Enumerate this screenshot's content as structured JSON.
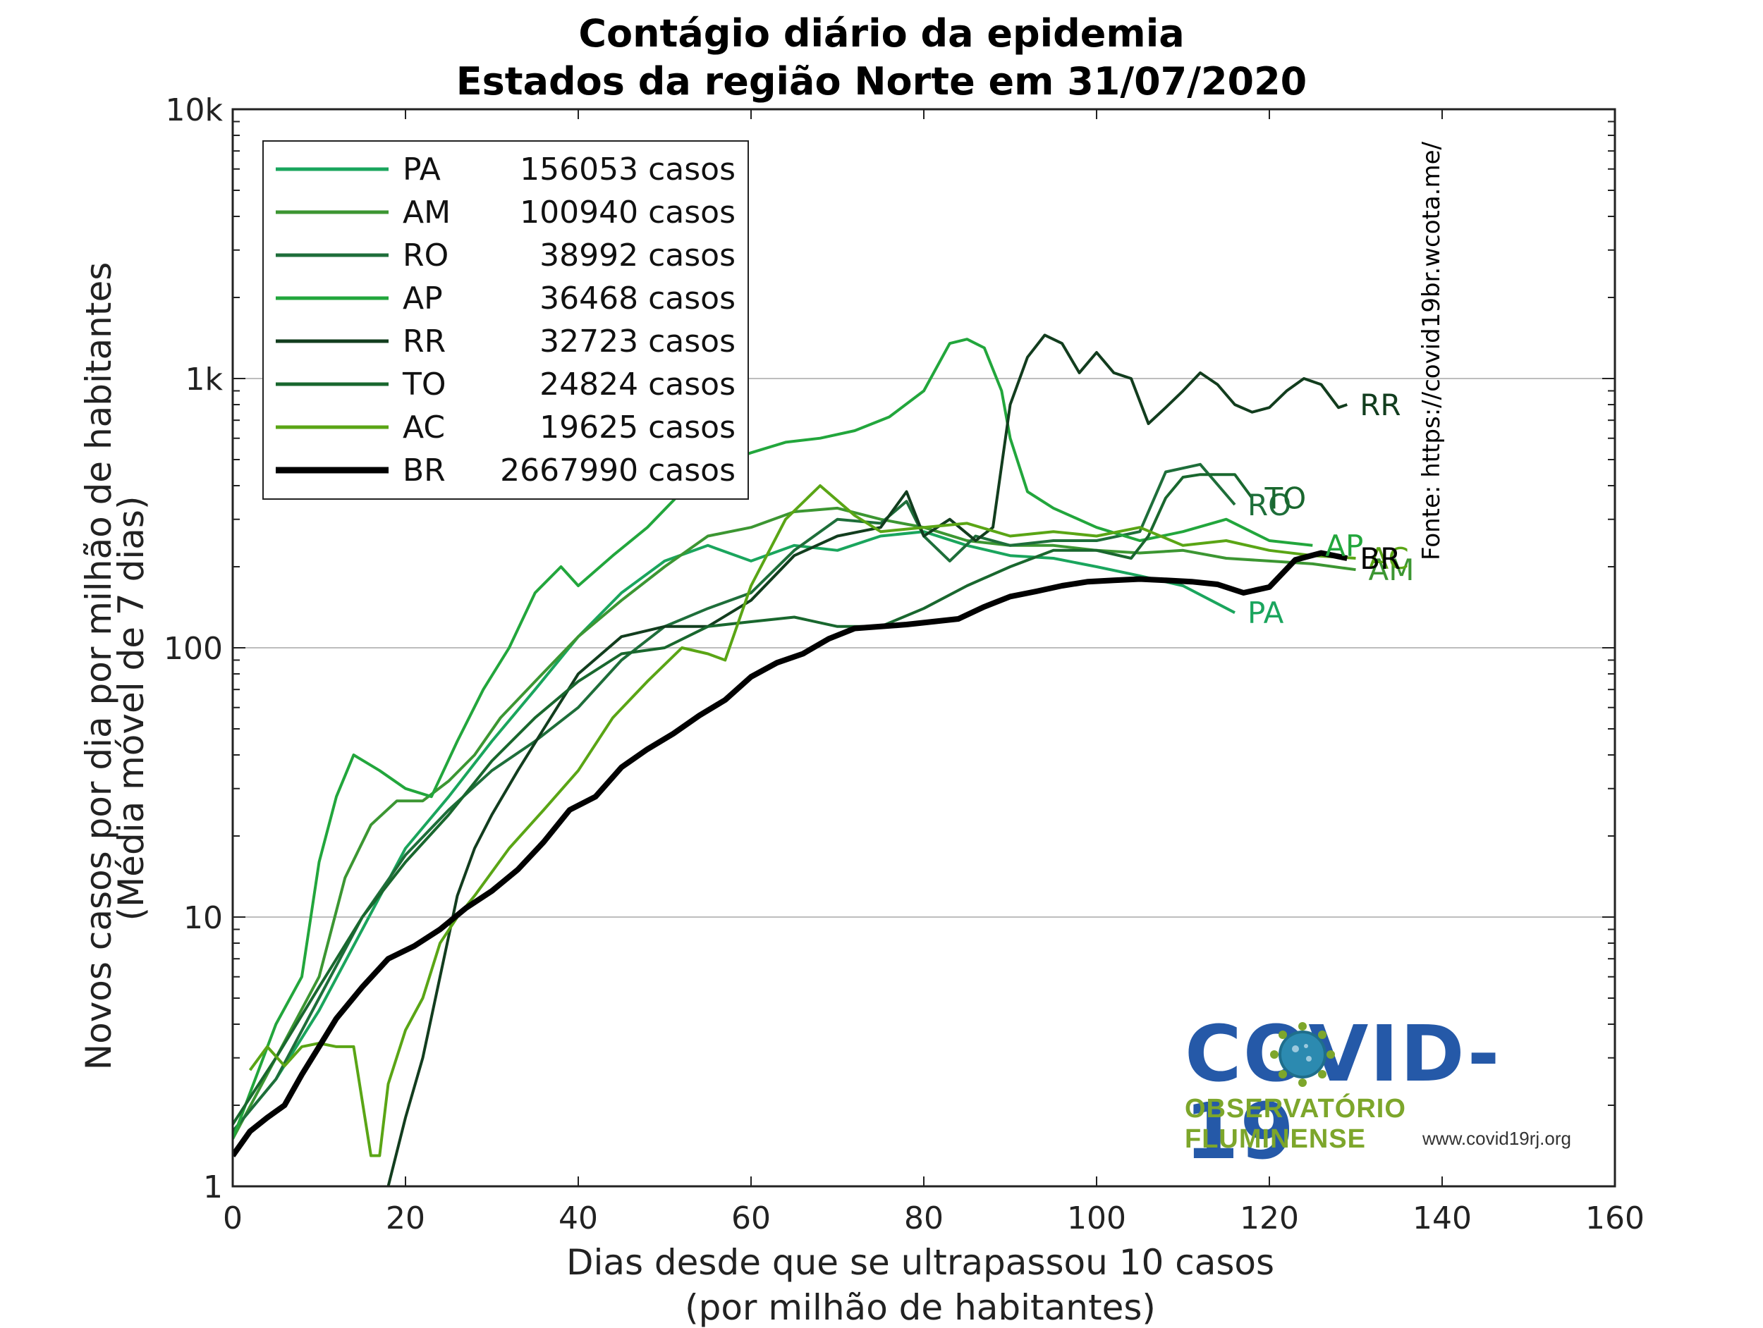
{
  "title_line1": "Contágio diário da epidemia",
  "title_line2": "Estados da região Norte em 31/07/2020",
  "source": "Fonte: https://covid19br.wcota.me/",
  "logo": {
    "title": "COVID-19",
    "subtitle": "OBSERVATÓRIO FLUMINENSE",
    "url": "www.covid19rj.org",
    "title_color": "#2559a8",
    "subtitle_color": "#7da62b",
    "virus_icon": "coronavirus-icon"
  },
  "chart_data": {
    "type": "line",
    "xlabel_line1": "Dias desde que se ultrapassou 10 casos",
    "xlabel_line2": "(por milhão de habitantes)",
    "ylabel_line1": "Novos casos por dia por milhão de habitantes",
    "ylabel_line2": "(Média móvel de 7 dias)",
    "xlim": [
      0,
      160
    ],
    "ylim": [
      1,
      10000
    ],
    "yscale": "log",
    "grid": "y-major",
    "legend_position": "top-left",
    "x_ticks": [
      0,
      20,
      40,
      60,
      80,
      100,
      120,
      140,
      160
    ],
    "x_tick_labels": [
      "0",
      "20",
      "40",
      "60",
      "80",
      "100",
      "120",
      "140",
      "160"
    ],
    "y_ticks": [
      1,
      10,
      100,
      1000,
      10000
    ],
    "y_tick_labels": [
      "1",
      "10",
      "100",
      "1k",
      "10k"
    ],
    "series": [
      {
        "name": "PA",
        "count": "156053 casos",
        "color": "#1aa55d",
        "width": 4,
        "end_label": "PA",
        "x": [
          0,
          5,
          10,
          15,
          20,
          25,
          30,
          35,
          40,
          45,
          50,
          55,
          60,
          65,
          70,
          75,
          80,
          85,
          90,
          95,
          100,
          105,
          110,
          116
        ],
        "y": [
          1.6,
          2.5,
          4.5,
          9,
          18,
          28,
          45,
          70,
          110,
          160,
          210,
          240,
          210,
          240,
          230,
          260,
          270,
          240,
          220,
          215,
          200,
          185,
          170,
          135
        ]
      },
      {
        "name": "AM",
        "count": "100940 casos",
        "color": "#3c9632",
        "width": 4,
        "end_label": "AM",
        "x": [
          0,
          5,
          10,
          13,
          16,
          19,
          22,
          25,
          28,
          31,
          35,
          40,
          45,
          50,
          55,
          60,
          65,
          70,
          75,
          80,
          85,
          90,
          95,
          100,
          105,
          110,
          115,
          120,
          125,
          130
        ],
        "y": [
          1.5,
          3,
          6,
          14,
          22,
          27,
          27,
          32,
          40,
          55,
          75,
          110,
          150,
          200,
          260,
          280,
          320,
          330,
          300,
          280,
          250,
          240,
          240,
          230,
          225,
          230,
          215,
          210,
          205,
          195
        ]
      },
      {
        "name": "RO",
        "count": "38992 casos",
        "color": "#1e6e3a",
        "width": 4,
        "end_label": "RO",
        "x": [
          0,
          5,
          10,
          15,
          20,
          25,
          30,
          35,
          40,
          45,
          50,
          55,
          60,
          65,
          70,
          75,
          78,
          80,
          83,
          86,
          90,
          95,
          100,
          105,
          108,
          112,
          116
        ],
        "y": [
          1.6,
          2.5,
          5,
          10,
          17,
          25,
          35,
          45,
          60,
          90,
          120,
          140,
          160,
          230,
          300,
          290,
          350,
          260,
          210,
          260,
          240,
          250,
          250,
          270,
          450,
          480,
          340
        ]
      },
      {
        "name": "AP",
        "count": "36468 casos",
        "color": "#22a63c",
        "width": 4,
        "end_label": "AP",
        "x": [
          0,
          5,
          8,
          10,
          12,
          14,
          17,
          20,
          23,
          26,
          29,
          32,
          35,
          38,
          40,
          44,
          48,
          52,
          56,
          60,
          64,
          68,
          72,
          76,
          80,
          83,
          85,
          87,
          89,
          90,
          92,
          95,
          100,
          105,
          110,
          115,
          120,
          125
        ],
        "y": [
          1.5,
          4,
          6,
          16,
          28,
          40,
          35,
          30,
          28,
          45,
          70,
          100,
          160,
          200,
          170,
          220,
          280,
          380,
          480,
          530,
          580,
          600,
          640,
          720,
          900,
          1350,
          1400,
          1300,
          900,
          600,
          380,
          330,
          280,
          250,
          270,
          300,
          250,
          240
        ]
      },
      {
        "name": "RR",
        "count": "32723 casos",
        "color": "#123d1e",
        "width": 4,
        "end_label": "RR",
        "x": [
          18,
          20,
          22,
          24,
          26,
          28,
          30,
          33,
          36,
          40,
          45,
          50,
          55,
          60,
          65,
          70,
          75,
          78,
          80,
          83,
          86,
          88,
          90,
          92,
          94,
          96,
          98,
          100,
          102,
          104,
          106,
          108,
          110,
          112,
          114,
          116,
          118,
          120,
          122,
          124,
          126,
          128,
          129
        ],
        "y": [
          1,
          1.8,
          3,
          6,
          12,
          18,
          24,
          35,
          50,
          80,
          110,
          120,
          120,
          150,
          220,
          260,
          280,
          380,
          260,
          300,
          250,
          280,
          800,
          1200,
          1450,
          1350,
          1050,
          1250,
          1050,
          1000,
          680,
          780,
          900,
          1050,
          950,
          800,
          750,
          780,
          900,
          1000,
          950,
          780,
          800
        ]
      },
      {
        "name": "TO",
        "count": "24824 casos",
        "color": "#19672e",
        "width": 4,
        "end_label": "TO",
        "x": [
          0,
          5,
          10,
          15,
          20,
          25,
          30,
          35,
          40,
          45,
          50,
          55,
          60,
          65,
          70,
          75,
          80,
          85,
          90,
          95,
          100,
          104,
          106,
          108,
          110,
          112,
          114,
          116,
          118
        ],
        "y": [
          1.7,
          3,
          5.5,
          10,
          16,
          24,
          38,
          55,
          75,
          95,
          100,
          120,
          125,
          130,
          120,
          120,
          140,
          170,
          200,
          230,
          230,
          215,
          260,
          360,
          430,
          440,
          440,
          440,
          360
        ]
      },
      {
        "name": "AC",
        "count": "19625 casos",
        "color": "#5aa515",
        "width": 4,
        "end_label": "AC",
        "x": [
          2,
          4,
          6,
          8,
          10,
          12,
          14,
          16,
          17,
          18,
          20,
          22,
          24,
          26,
          28,
          32,
          36,
          40,
          44,
          48,
          52,
          55,
          57,
          60,
          64,
          68,
          72,
          75,
          80,
          85,
          90,
          95,
          100,
          105,
          110,
          115,
          120,
          125,
          130
        ],
        "y": [
          2.7,
          3.3,
          2.8,
          3.3,
          3.4,
          3.3,
          3.3,
          1.3,
          1.3,
          2.4,
          3.8,
          5,
          8,
          10,
          12,
          18,
          25,
          35,
          55,
          75,
          100,
          95,
          90,
          170,
          300,
          400,
          310,
          270,
          280,
          290,
          260,
          270,
          260,
          280,
          240,
          250,
          230,
          220,
          215
        ]
      },
      {
        "name": "BR",
        "count": "2667990 casos",
        "color": "#000000",
        "width": 8,
        "end_label": "BR",
        "x": [
          0,
          2,
          4,
          6,
          8,
          10,
          12,
          15,
          18,
          21,
          24,
          27,
          30,
          33,
          36,
          39,
          42,
          45,
          48,
          51,
          54,
          57,
          60,
          63,
          66,
          69,
          72,
          75,
          78,
          81,
          84,
          87,
          90,
          93,
          96,
          99,
          102,
          105,
          108,
          111,
          114,
          117,
          120,
          123,
          126,
          129
        ],
        "y": [
          1.3,
          1.6,
          1.8,
          2.0,
          2.6,
          3.3,
          4.2,
          5.5,
          7,
          7.8,
          9,
          10.8,
          12.5,
          15,
          19,
          25,
          28,
          36,
          42,
          48,
          56,
          64,
          78,
          88,
          95,
          108,
          118,
          120,
          122,
          125,
          128,
          142,
          155,
          162,
          170,
          176,
          178,
          180,
          178,
          176,
          172,
          160,
          168,
          212,
          225,
          215
        ]
      }
    ]
  }
}
